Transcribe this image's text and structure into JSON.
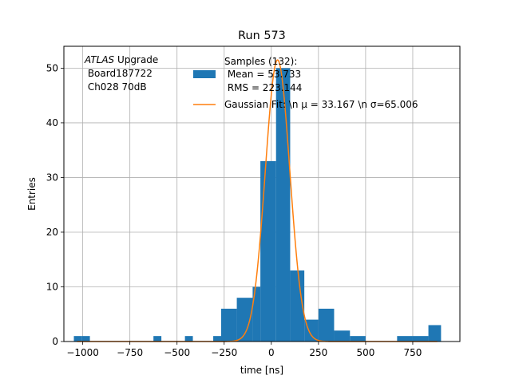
{
  "chart_data": {
    "type": "bar",
    "title": "Run 573",
    "xlabel": "time [ns]",
    "ylabel": "Entries",
    "xlim": [
      -1100,
      1000
    ],
    "ylim": [
      0,
      54
    ],
    "xticks": [
      -1000,
      -750,
      -500,
      -250,
      0,
      250,
      500,
      750
    ],
    "xtick_labels": [
      "−1000",
      "−750",
      "−500",
      "−250",
      "0",
      "250",
      "500",
      "750"
    ],
    "yticks": [
      0,
      10,
      20,
      30,
      40,
      50
    ],
    "ytick_labels": [
      "0",
      "10",
      "20",
      "30",
      "40",
      "50"
    ],
    "grid": true,
    "annotation": {
      "line1_italic": "ATLAS",
      "line1_rest": " Upgrade",
      "line2": " Board187722",
      "line3": " Ch028 70dB"
    },
    "legend": {
      "position": "top-right",
      "hist_line1": "Samples (132):",
      "hist_line2": " Mean = 53.733",
      "hist_line3": " RMS = 223.144",
      "fit_label": "Gaussian Fit: \\n μ = 33.167 \\n σ=65.006"
    },
    "series": [
      {
        "name": "Samples (132):",
        "kind": "histogram",
        "color": "#1f77b4",
        "bins": [
          {
            "x0": -1047,
            "x1": -1004,
            "count": 1
          },
          {
            "x0": -1004,
            "x1": -962,
            "count": 1
          },
          {
            "x0": -625,
            "x1": -583,
            "count": 1
          },
          {
            "x0": -458,
            "x1": -416,
            "count": 1
          },
          {
            "x0": -308,
            "x1": -266,
            "count": 1
          },
          {
            "x0": -266,
            "x1": -183,
            "count": 6
          },
          {
            "x0": -183,
            "x1": -99,
            "count": 8
          },
          {
            "x0": -99,
            "x1": -58,
            "count": 10
          },
          {
            "x0": -58,
            "x1": 25,
            "count": 33
          },
          {
            "x0": 25,
            "x1": 100,
            "count": 50
          },
          {
            "x0": 100,
            "x1": 175,
            "count": 13
          },
          {
            "x0": 175,
            "x1": 250,
            "count": 4
          },
          {
            "x0": 250,
            "x1": 333,
            "count": 6
          },
          {
            "x0": 333,
            "x1": 417,
            "count": 2
          },
          {
            "x0": 417,
            "x1": 500,
            "count": 1
          },
          {
            "x0": 667,
            "x1": 750,
            "count": 1
          },
          {
            "x0": 750,
            "x1": 833,
            "count": 1
          },
          {
            "x0": 833,
            "x1": 900,
            "count": 3
          }
        ]
      },
      {
        "name": "Gaussian Fit: \\n μ = 33.167 \\n σ=65.006",
        "kind": "gaussian",
        "color": "#ff7f0e",
        "amplitude": 51.5,
        "mu": 33.167,
        "sigma": 65.006,
        "x_range": [
          -1030,
          880
        ]
      }
    ]
  }
}
